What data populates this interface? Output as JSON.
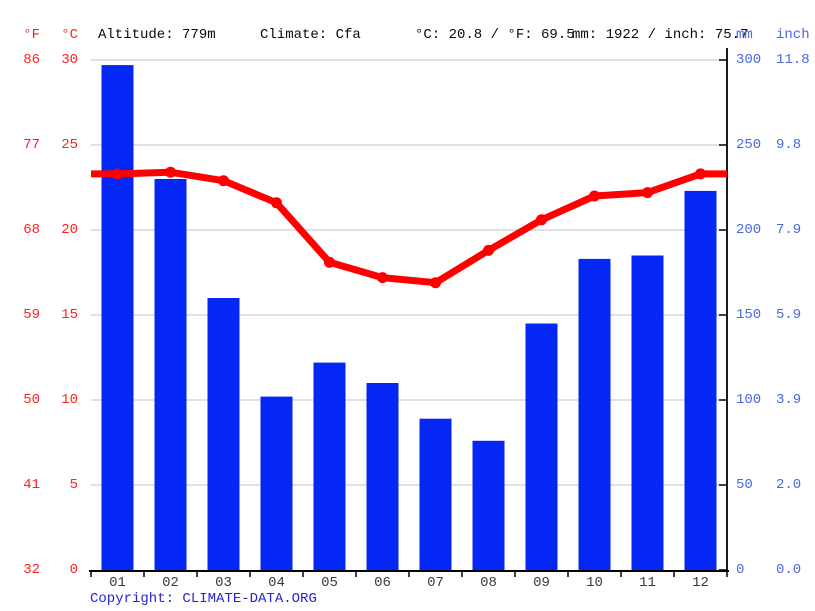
{
  "header": {
    "f_label": "°F",
    "c_label": "°C",
    "altitude": "Altitude: 779m",
    "climate": "Climate: Cfa",
    "temp_summary": "°C: 20.8 / °F: 69.5",
    "precip_summary": "mm: 1922 / inch: 75.7",
    "mm_label": "mm",
    "inch_label": "inch"
  },
  "footer": {
    "copyright_label": "Copyright: ",
    "site_link": "CLIMATE-DATA.ORG"
  },
  "chart_data": {
    "type": "bar+line",
    "categories": [
      "01",
      "02",
      "03",
      "04",
      "05",
      "06",
      "07",
      "08",
      "09",
      "10",
      "11",
      "12"
    ],
    "series": [
      {
        "name": "precipitation",
        "type": "bar",
        "unit": "mm",
        "values": [
          297,
          230,
          160,
          102,
          122,
          110,
          89,
          76,
          145,
          183,
          185,
          223
        ],
        "color": "#0527f5"
      },
      {
        "name": "temperature",
        "type": "line",
        "unit": "°C",
        "values": [
          23.3,
          23.4,
          22.9,
          21.6,
          18.1,
          17.2,
          16.9,
          18.8,
          20.6,
          22.0,
          22.2,
          23.3
        ],
        "color": "#ff0000"
      }
    ],
    "axes": {
      "left_fahrenheit": [
        "86",
        "77",
        "68",
        "59",
        "50",
        "41",
        "32"
      ],
      "left_celsius": [
        "30",
        "25",
        "20",
        "15",
        "10",
        "5",
        "0"
      ],
      "right_mm": [
        "300",
        "250",
        "200",
        "150",
        "100",
        "50",
        "0"
      ],
      "right_inch": [
        "11.8",
        "9.8",
        "7.9",
        "5.9",
        "3.9",
        "2.0",
        "0.0"
      ]
    },
    "ylim_temp_c": [
      0,
      30
    ],
    "ylim_precip_mm": [
      0,
      300
    ],
    "grid": true,
    "legend_position": "none"
  },
  "colors": {
    "bar_blue": "#0527f5",
    "line_red": "#ff0000",
    "left_axis_red": "#ff2222",
    "right_axis_blue": "#4a68e0",
    "gridline_gray": "#cfcfcf",
    "axis_black": "#000000",
    "month_gray": "#3a3a3a",
    "copyright_blue": "#2424d9"
  }
}
